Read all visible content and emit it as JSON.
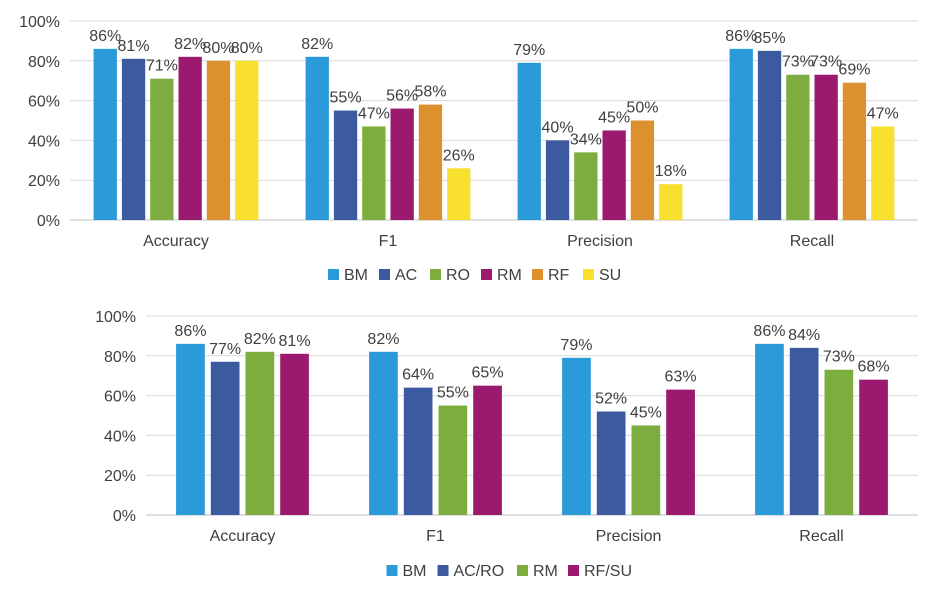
{
  "chart_data": [
    {
      "type": "bar",
      "categories": [
        "Accuracy",
        "F1",
        "Precision",
        "Recall"
      ],
      "series": [
        {
          "name": "BM",
          "color": "#2a9ad9",
          "values": [
            86,
            82,
            79,
            86
          ],
          "labels": [
            "86%",
            "82%",
            "79%",
            "86%"
          ]
        },
        {
          "name": "AC",
          "color": "#3c5a9f",
          "values": [
            81,
            55,
            40,
            85
          ],
          "labels": [
            "81%",
            "55%",
            "40%",
            "85%"
          ]
        },
        {
          "name": "RO",
          "color": "#7dac3f",
          "values": [
            71,
            47,
            34,
            73
          ],
          "labels": [
            "71%",
            "47%",
            "34%",
            "73%"
          ]
        },
        {
          "name": "RM",
          "color": "#9b1a6f",
          "values": [
            82,
            56,
            45,
            73
          ],
          "labels": [
            "82%",
            "56%",
            "45%",
            "73%"
          ]
        },
        {
          "name": "RF",
          "color": "#dd912e",
          "values": [
            80,
            58,
            50,
            69
          ],
          "labels": [
            "80%",
            "58%",
            "50%",
            "69%"
          ]
        },
        {
          "name": "SU",
          "color": "#f9e02e",
          "values": [
            80,
            26,
            18,
            47
          ],
          "labels": [
            "80%",
            "26%",
            "18%",
            "47%"
          ]
        }
      ],
      "ylim": [
        0,
        100
      ],
      "yticks": [
        "0%",
        "20%",
        "40%",
        "60%",
        "80%",
        "100%"
      ],
      "grid": true,
      "legend": "bottom"
    },
    {
      "type": "bar",
      "categories": [
        "Accuracy",
        "F1",
        "Precision",
        "Recall"
      ],
      "series": [
        {
          "name": "BM",
          "color": "#2a9ad9",
          "values": [
            86,
            82,
            79,
            86
          ],
          "labels": [
            "86%",
            "82%",
            "79%",
            "86%"
          ]
        },
        {
          "name": "AC/RO",
          "color": "#3c5a9f",
          "values": [
            77,
            64,
            52,
            84
          ],
          "labels": [
            "77%",
            "64%",
            "52%",
            "84%"
          ]
        },
        {
          "name": "RM",
          "color": "#7dac3f",
          "values": [
            82,
            55,
            45,
            73
          ],
          "labels": [
            "82%",
            "55%",
            "45%",
            "73%"
          ]
        },
        {
          "name": "RF/SU",
          "color": "#9b1a6f",
          "values": [
            81,
            65,
            63,
            68
          ],
          "labels": [
            "81%",
            "65%",
            "63%",
            "68%"
          ]
        }
      ],
      "ylim": [
        0,
        100
      ],
      "yticks": [
        "0%",
        "20%",
        "40%",
        "60%",
        "80%",
        "100%"
      ],
      "grid": true,
      "legend": "bottom"
    }
  ]
}
